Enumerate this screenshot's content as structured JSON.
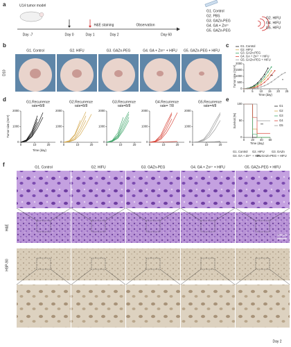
{
  "panel_a": {
    "label": "a",
    "model": "U14 tumor model",
    "timeline": [
      "Day -7",
      "Day 0",
      "Day 1",
      "H&E staining",
      "Day 2",
      "Observation",
      "Day 60"
    ],
    "groups": [
      "G1. Control",
      "G2. PBS",
      "G3. GAZn-PEG",
      "G4. GA + Zn²⁺",
      "G5. GAZn-PEG"
    ],
    "hifu_groups": [
      "G2. HIFU",
      "G4. HIFU",
      "G5. HIFU"
    ]
  },
  "panel_b": {
    "label": "b",
    "row_label": "D10",
    "groups": [
      "G1. Control",
      "G2. HIFU",
      "G3. GAZn-PEG",
      "G4. GA + Zn²⁺ + HIFU",
      "G5. GAZn-PEG + HIFU"
    ]
  },
  "panel_c": {
    "label": "c"
  },
  "panel_d": {
    "label": "d",
    "ylabel": "Tumor size (mm³)",
    "xlabel": "Time (day)"
  },
  "panel_e": {
    "label": "e"
  },
  "panel_f": {
    "label": "f",
    "groups": [
      "G1. Control",
      "G2. HIFU",
      "G3. GAZn-PEG",
      "G4. GA + Zn²⁺ + HIFU",
      "G5. GAZn-PEG + HIFU"
    ],
    "rows": [
      "H&E",
      "HSP-90"
    ],
    "scale_bar": "100 μm",
    "timepoint": "Day 2"
  },
  "chart_data": [
    {
      "type": "line",
      "markers": true,
      "xlabel": "Time (day)",
      "ylabel": "Tumor size (mm³)",
      "x": [
        0,
        2,
        4,
        6,
        8,
        10,
        12,
        14,
        16,
        18,
        20,
        22,
        24
      ],
      "xlim": [
        0,
        25
      ],
      "xticks": [
        0,
        5,
        10,
        15,
        20,
        25
      ],
      "ylim": [
        0,
        2000
      ],
      "yticks": [
        0,
        500,
        1000,
        1500,
        2000
      ],
      "annotations": [
        "**",
        "*"
      ],
      "series": [
        {
          "name": "G1. Control",
          "color": "#222222",
          "values": [
            0,
            40,
            120,
            260,
            480,
            780,
            1150,
            1650,
            null,
            null,
            null,
            null,
            null
          ]
        },
        {
          "name": "G2. HIFU",
          "color": "#d4a94f",
          "values": [
            0,
            20,
            60,
            140,
            280,
            480,
            750,
            1050,
            1450,
            null,
            null,
            null,
            null
          ]
        },
        {
          "name": "G3. GAZn-PEG",
          "color": "#3fa66a",
          "values": [
            0,
            30,
            90,
            200,
            380,
            620,
            950,
            1350,
            1750,
            null,
            null,
            null,
            null
          ]
        },
        {
          "name": "G4. GA + Zn²⁺ + HIFU",
          "color": "#d9473b",
          "values": [
            0,
            10,
            40,
            90,
            180,
            320,
            520,
            780,
            1100,
            1450,
            null,
            null,
            null
          ]
        },
        {
          "name": "G5. GAZn-PEG + HIFU",
          "color": "#9a9a9a",
          "values": [
            0,
            5,
            15,
            40,
            80,
            150,
            250,
            380,
            550,
            750,
            950,
            1150,
            1300
          ]
        }
      ]
    },
    {
      "type": "line",
      "title": [
        "G1.Recurrence",
        "rate=8/8"
      ],
      "x": [
        0,
        4,
        8,
        12,
        16,
        20
      ],
      "xlim": [
        0,
        25
      ],
      "xticks": [
        0,
        10,
        20
      ],
      "ylim": [
        0,
        2000
      ],
      "yticks": [
        0,
        1000,
        2000
      ],
      "series": [
        {
          "color": "#111111",
          "values": [
            0,
            100,
            500,
            1300,
            null,
            null
          ]
        },
        {
          "color": "#111111",
          "values": [
            0,
            80,
            400,
            1100,
            1900,
            null
          ]
        },
        {
          "color": "#111111",
          "values": [
            0,
            150,
            700,
            1700,
            null,
            null
          ]
        },
        {
          "color": "#111111",
          "values": [
            0,
            60,
            350,
            900,
            1600,
            null
          ]
        },
        {
          "color": "#111111",
          "values": [
            0,
            120,
            600,
            1500,
            null,
            null
          ]
        }
      ]
    },
    {
      "type": "line",
      "title": [
        "G2.Recurrence",
        "rate=8/8"
      ],
      "x": [
        0,
        4,
        8,
        12,
        16,
        20
      ],
      "xlim": [
        0,
        25
      ],
      "xticks": [
        0,
        10,
        20
      ],
      "ylim": [
        0,
        2000
      ],
      "yticks": [
        0,
        1000,
        2000
      ],
      "series": [
        {
          "color": "#d4a94f",
          "values": [
            0,
            60,
            300,
            900,
            1700,
            null
          ]
        },
        {
          "color": "#d4a94f",
          "values": [
            0,
            80,
            450,
            1200,
            1950,
            null
          ]
        },
        {
          "color": "#d4a94f",
          "values": [
            0,
            40,
            200,
            700,
            1400,
            null
          ]
        },
        {
          "color": "#d4a94f",
          "values": [
            0,
            100,
            500,
            1400,
            null,
            null
          ]
        },
        {
          "color": "#d4a94f",
          "values": [
            0,
            30,
            150,
            500,
            1100,
            1800
          ]
        }
      ]
    },
    {
      "type": "line",
      "title": [
        "G3.Recurrence",
        "rate=8/8"
      ],
      "x": [
        0,
        4,
        8,
        12,
        16,
        20
      ],
      "xlim": [
        0,
        25
      ],
      "xticks": [
        0,
        10,
        20
      ],
      "ylim": [
        0,
        2000
      ],
      "yticks": [
        0,
        1000,
        2000
      ],
      "series": [
        {
          "color": "#3fa66a",
          "values": [
            0,
            90,
            450,
            1300,
            1950,
            null
          ]
        },
        {
          "color": "#3fa66a",
          "values": [
            0,
            60,
            300,
            900,
            1600,
            null
          ]
        },
        {
          "color": "#3fa66a",
          "values": [
            0,
            120,
            600,
            1600,
            null,
            null
          ]
        },
        {
          "color": "#3fa66a",
          "values": [
            0,
            50,
            250,
            750,
            1400,
            null
          ]
        },
        {
          "color": "#3fa66a",
          "values": [
            0,
            70,
            380,
            1100,
            1800,
            null
          ]
        }
      ]
    },
    {
      "type": "line",
      "title": [
        "G4.Recurrence",
        "rate= 7/8"
      ],
      "x": [
        0,
        4,
        8,
        12,
        16,
        20
      ],
      "xlim": [
        0,
        25
      ],
      "xticks": [
        0,
        10,
        20
      ],
      "ylim": [
        0,
        2000
      ],
      "yticks": [
        0,
        1000,
        2000
      ],
      "series": [
        {
          "color": "#d9473b",
          "values": [
            0,
            40,
            250,
            800,
            1500,
            null
          ]
        },
        {
          "color": "#d9473b",
          "values": [
            0,
            60,
            350,
            1000,
            1800,
            null
          ]
        },
        {
          "color": "#d9473b",
          "values": [
            0,
            30,
            180,
            600,
            1200,
            1900
          ]
        },
        {
          "color": "#d9473b",
          "values": [
            0,
            80,
            450,
            1200,
            1900,
            null
          ]
        },
        {
          "color": "#d9473b",
          "values": [
            0,
            10,
            20,
            30,
            40,
            50
          ]
        }
      ]
    },
    {
      "type": "line",
      "title": [
        "G5.Recurrence",
        "rate=4/8"
      ],
      "x": [
        0,
        4,
        8,
        12,
        16,
        20
      ],
      "xlim": [
        0,
        25
      ],
      "xticks": [
        0,
        10,
        20
      ],
      "ylim": [
        0,
        2000
      ],
      "yticks": [
        0,
        1000,
        2000
      ],
      "series": [
        {
          "color": "#9a9a9a",
          "values": [
            0,
            30,
            150,
            500,
            1100,
            1800
          ]
        },
        {
          "color": "#9a9a9a",
          "values": [
            0,
            20,
            100,
            350,
            800,
            1400
          ]
        },
        {
          "color": "#9a9a9a",
          "values": [
            0,
            10,
            20,
            30,
            40,
            60
          ]
        },
        {
          "color": "#9a9a9a",
          "values": [
            0,
            40,
            200,
            650,
            1300,
            1900
          ]
        },
        {
          "color": "#9a9a9a",
          "values": [
            0,
            5,
            10,
            20,
            30,
            40
          ]
        }
      ]
    },
    {
      "type": "line",
      "drawstyle": "steps-post",
      "xlabel": "Time (day)",
      "ylabel": "Survival (%)",
      "x": [
        0,
        10,
        20,
        30,
        40,
        50,
        60
      ],
      "xlim": [
        0,
        60
      ],
      "xticks": [
        0,
        20,
        40,
        60
      ],
      "ylim": [
        0,
        100
      ],
      "yticks": [
        0,
        50,
        100
      ],
      "annotations": [
        "**"
      ],
      "footnotes": [
        "G1. Control",
        "G2. HIFU",
        "G3. GAZn",
        "G4. GA + Zn²⁺ + HIFU",
        "G5. GAZn-PEG + HIFU"
      ],
      "series": [
        {
          "name": "G1",
          "color": "#222222",
          "values": [
            100,
            100,
            0,
            0,
            0,
            0,
            0
          ]
        },
        {
          "name": "G2",
          "color": "#d4a94f",
          "values": [
            100,
            100,
            25,
            0,
            0,
            0,
            0
          ]
        },
        {
          "name": "G3",
          "color": "#3fa66a",
          "values": [
            100,
            100,
            10,
            0,
            0,
            0,
            0
          ]
        },
        {
          "name": "G4",
          "color": "#d9473b",
          "values": [
            100,
            100,
            60,
            12,
            12,
            12,
            12
          ]
        },
        {
          "name": "G5",
          "color": "#9a9a9a",
          "values": [
            100,
            100,
            100,
            50,
            50,
            50,
            50
          ]
        }
      ]
    }
  ]
}
